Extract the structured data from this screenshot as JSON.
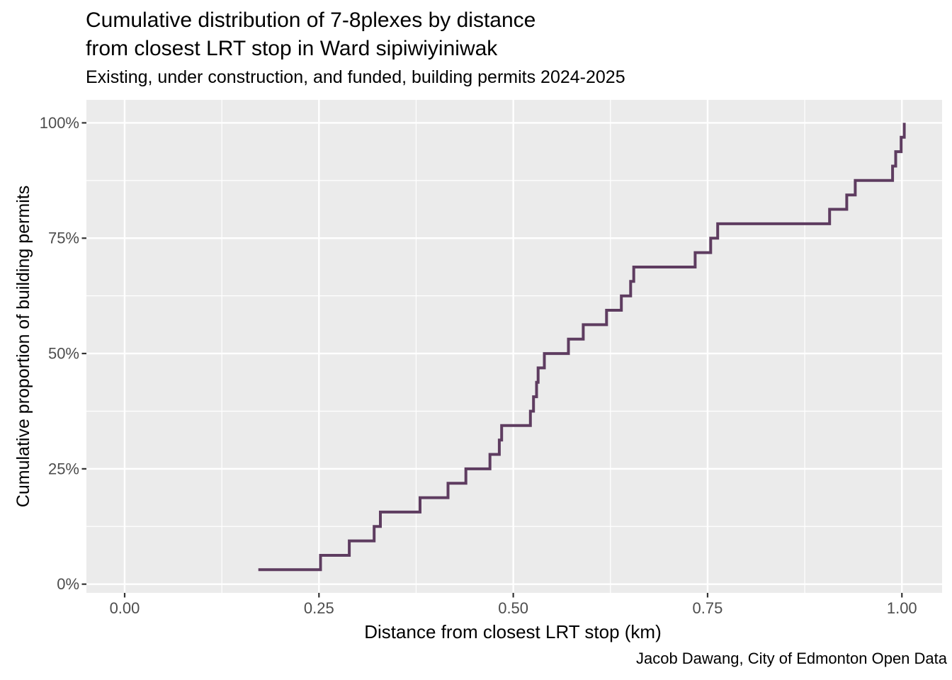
{
  "chart_data": {
    "type": "line",
    "subtype": "ecdf_step",
    "title": "Cumulative distribution of 7-8plexes by distance from closest LRT stop in Ward sipiwiyiniwak",
    "title_lines": [
      "Cumulative distribution of 7-8plexes by distance",
      "from closest LRT stop in Ward sipiwiyiniwak"
    ],
    "subtitle": "Existing, under construction, and funded, building permits 2024-2025",
    "caption": "Jacob Dawang, City of Edmonton Open Data",
    "xlabel": "Distance from closest LRT stop (km)",
    "ylabel": "Cumulative proportion of building permits",
    "n_points": 32,
    "x": [
      0.172,
      0.252,
      0.289,
      0.321,
      0.329,
      0.38,
      0.416,
      0.439,
      0.47,
      0.482,
      0.485,
      0.522,
      0.526,
      0.53,
      0.532,
      0.54,
      0.571,
      0.59,
      0.62,
      0.639,
      0.651,
      0.655,
      0.734,
      0.754,
      0.763,
      0.907,
      0.929,
      0.94,
      0.988,
      0.992,
      0.999,
      1.003
    ],
    "y": [
      0.03125,
      0.0625,
      0.09375,
      0.125,
      0.15625,
      0.1875,
      0.21875,
      0.25,
      0.28125,
      0.3125,
      0.34375,
      0.375,
      0.40625,
      0.4375,
      0.46875,
      0.5,
      0.53125,
      0.5625,
      0.59375,
      0.625,
      0.65625,
      0.6875,
      0.71875,
      0.75,
      0.78125,
      0.8125,
      0.84375,
      0.875,
      0.90625,
      0.9375,
      0.96875,
      1.0
    ],
    "x_ticks": {
      "values": [
        0,
        0.25,
        0.5,
        0.75,
        1.0
      ],
      "labels": [
        "0.00",
        "0.25",
        "0.50",
        "0.75",
        "1.00"
      ]
    },
    "y_ticks": {
      "values": [
        0,
        0.25,
        0.5,
        0.75,
        1.0
      ],
      "labels": [
        "0%",
        "25%",
        "50%",
        "75%",
        "100%"
      ]
    },
    "x_minor_gridlines": [
      0.125,
      0.375,
      0.625,
      0.875
    ],
    "y_minor_gridlines": [
      0.125,
      0.375,
      0.625,
      0.875
    ],
    "xlim": [
      -0.0492,
      1.0517
    ],
    "ylim": [
      -0.0189,
      1.0498
    ],
    "grid": true,
    "legend_position": "none",
    "colors": {
      "line": "#5e3c60",
      "panel_background": "#ebebeb",
      "gridline": "#ffffff",
      "tick_mark": "#333333",
      "tick_label": "#4d4d4d",
      "text": "#000000",
      "background": "#ffffff"
    }
  }
}
